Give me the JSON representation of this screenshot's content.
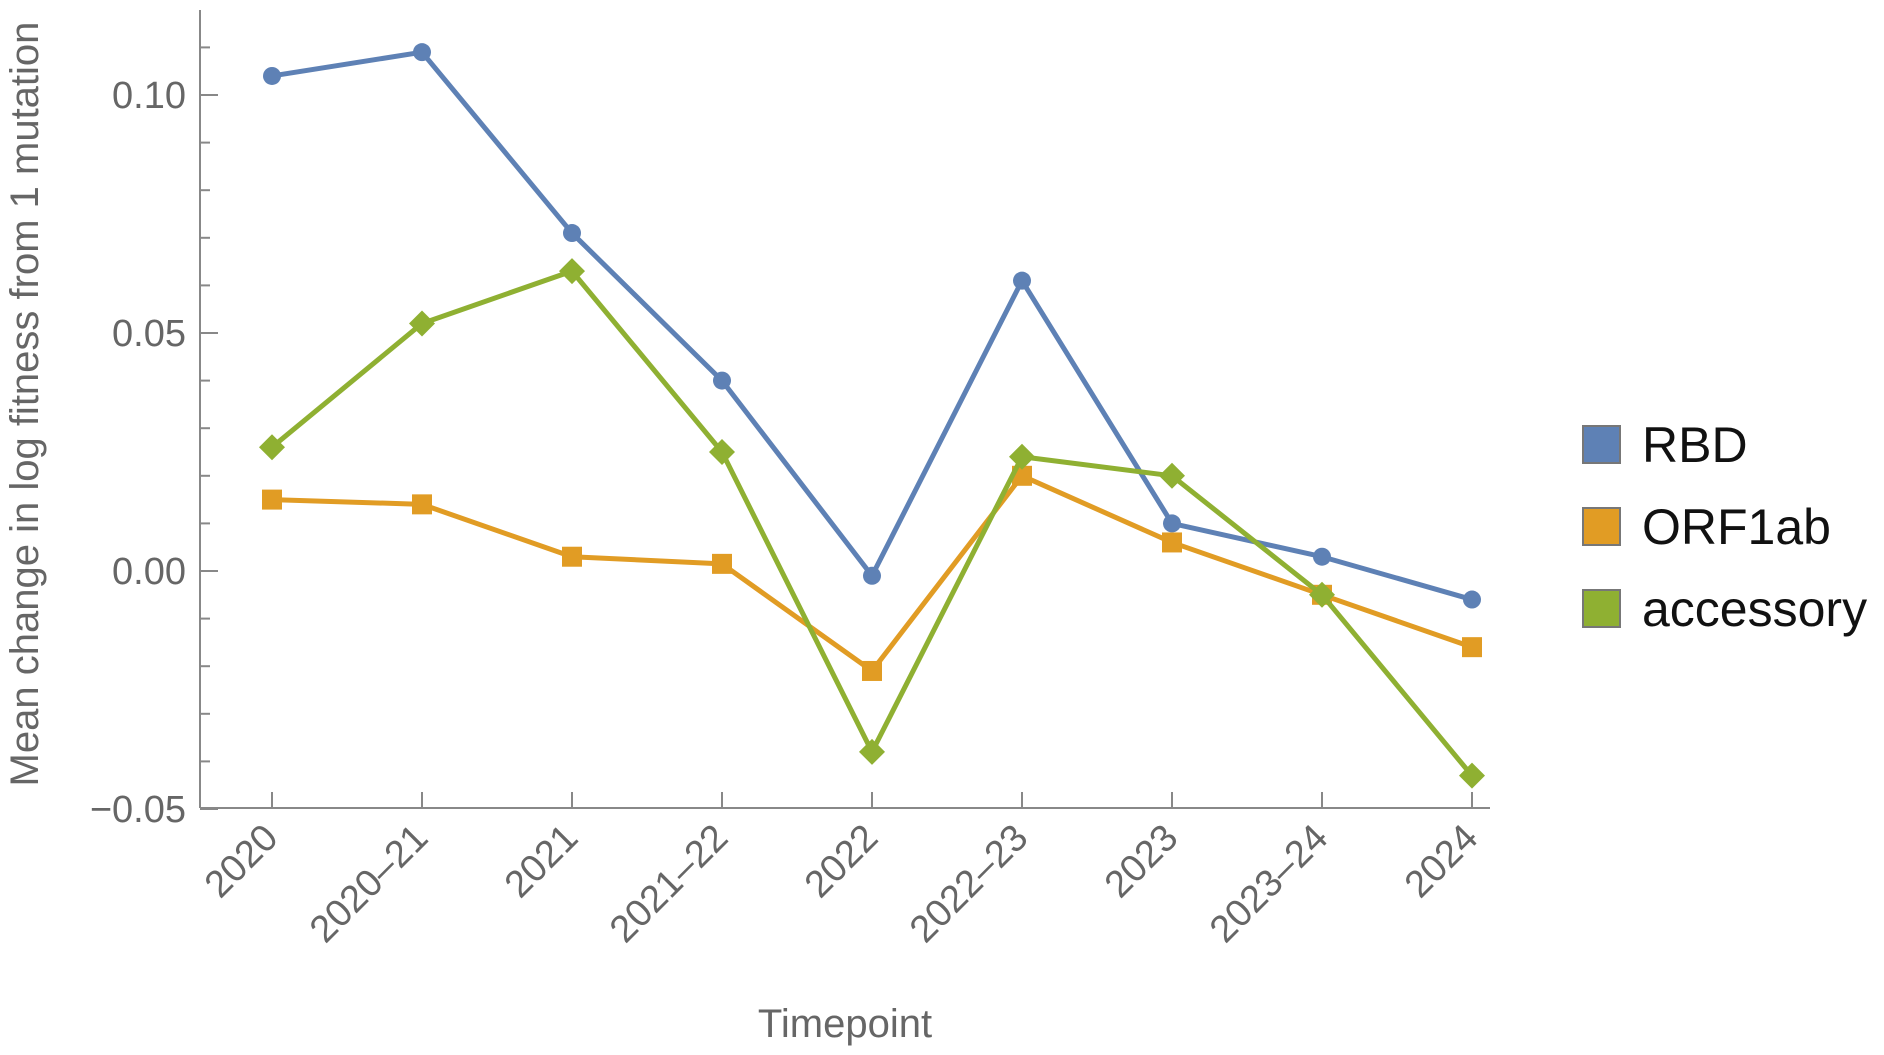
{
  "chart_data": {
    "type": "line",
    "xlabel": "Timepoint",
    "ylabel": "Mean change in log fitness from 1 mutation",
    "categories": [
      "2020",
      "2020–21",
      "2021",
      "2021–22",
      "2022",
      "2022–23",
      "2023",
      "2023–24",
      "2024"
    ],
    "ylim": [
      -0.052,
      0.118
    ],
    "y_ticks": [
      -0.05,
      0.0,
      0.05,
      0.1
    ],
    "y_tick_labels": [
      "−0.05",
      "0.00",
      "0.05",
      "0.10"
    ],
    "grid": false,
    "legend_position": "right",
    "series": [
      {
        "name": "RBD",
        "color": "#5E81B5",
        "marker": "circle",
        "values": [
          0.104,
          0.109,
          0.071,
          0.04,
          -0.001,
          0.061,
          0.01,
          0.003,
          -0.006
        ]
      },
      {
        "name": "ORF1ab",
        "color": "#E19C24",
        "marker": "square",
        "values": [
          0.015,
          0.014,
          0.003,
          0.0015,
          -0.021,
          0.02,
          0.006,
          -0.005,
          -0.016
        ]
      },
      {
        "name": "accessory",
        "color": "#8FB032",
        "marker": "diamond",
        "values": [
          0.026,
          0.052,
          0.063,
          0.025,
          -0.038,
          0.024,
          0.02,
          -0.005,
          -0.043
        ]
      }
    ]
  }
}
